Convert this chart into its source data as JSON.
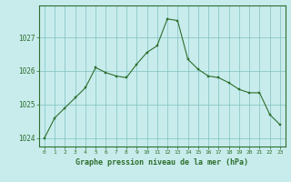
{
  "x": [
    0,
    1,
    2,
    3,
    4,
    5,
    6,
    7,
    8,
    9,
    10,
    11,
    12,
    13,
    14,
    15,
    16,
    17,
    18,
    19,
    20,
    21,
    22,
    23
  ],
  "y": [
    1024.0,
    1024.6,
    1024.9,
    1025.2,
    1025.5,
    1026.1,
    1025.95,
    1025.85,
    1025.8,
    1026.2,
    1026.55,
    1026.75,
    1027.55,
    1027.5,
    1026.35,
    1026.05,
    1025.85,
    1025.8,
    1025.65,
    1025.45,
    1025.35,
    1025.35,
    1024.7,
    1024.4
  ],
  "line_color": "#2d6e2d",
  "marker_color": "#2d6e2d",
  "bg_color": "#c8ecec",
  "grid_color": "#80c0c0",
  "border_color": "#2d6e2d",
  "xlabel": "Graphe pression niveau de la mer (hPa)",
  "xlabel_color": "#2d6e2d",
  "tick_color": "#2d6e2d",
  "ylim": [
    1023.75,
    1027.95
  ],
  "yticks": [
    1024,
    1025,
    1026,
    1027
  ],
  "xlim": [
    -0.5,
    23.5
  ],
  "xticks": [
    0,
    1,
    2,
    3,
    4,
    5,
    6,
    7,
    8,
    9,
    10,
    11,
    12,
    13,
    14,
    15,
    16,
    17,
    18,
    19,
    20,
    21,
    22,
    23
  ]
}
